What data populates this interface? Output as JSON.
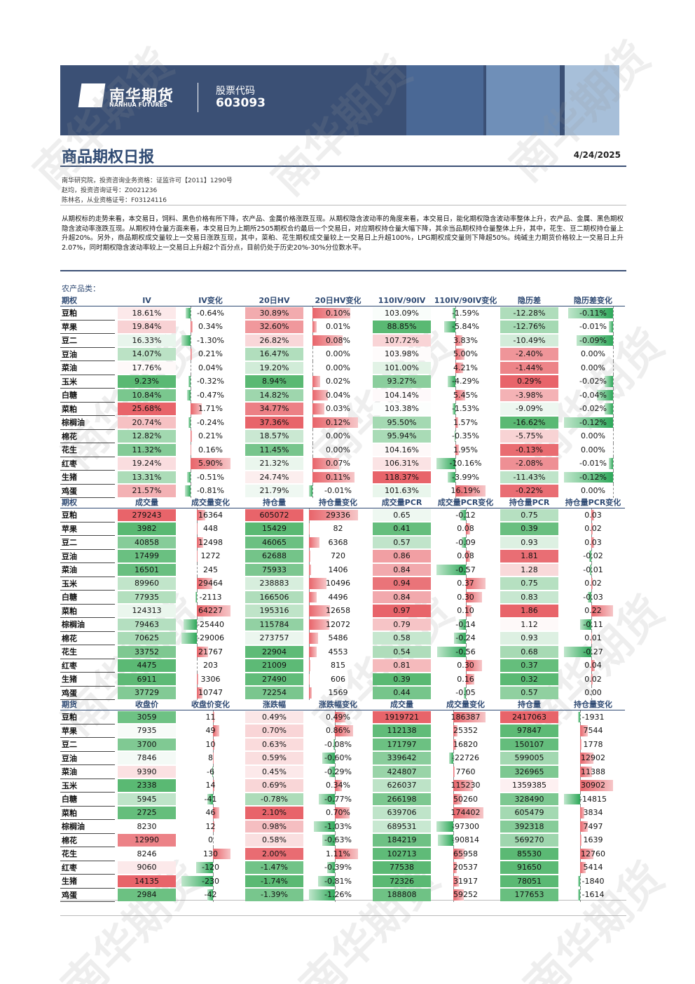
{
  "header": {
    "logo_cn": "南华期货",
    "logo_en": "NANHUA FUTURES",
    "code_label": "股票代码",
    "code": "603093"
  },
  "title": "商品期权日报",
  "date": "4/24/2025",
  "meta": [
    "南华研究院，投资咨询业务资格：证监许可【2011】1290号",
    "赵均，投资咨询证号：Z0021236",
    "陈林名，从业资格证号：F03124116"
  ],
  "summary": "从期权标的走势来看，本交易日，饲料、黑色价格有所下降，农产品、金属价格涨跌互现。从期权隐含波动率的角度来看，本交易日，能化期权隐含波动率整体上升，农产品、金属、黑色期权隐含波动率涨跌互现。从期权持仓量方面来看，本交易日为上期所2505期权合约最后一个交易日，对应期权持仓量大幅下降，其余当品期权持仓量整体上升，其中，花生、豆二期权持仓量上升超20%。另外，商品期权成交量较上一交易日涨跌互现，其中，菜粕、花生期权成交量较上一交易日上升超100%，LPG期权成交量则下降超50%。纯碱主力期货价格较上一交易日上升2.07%，同时期权隐含波动率较上一交易日上升超2个百分点，目前仍处于历史20%-30%分位数水平。",
  "section": "农产品类：",
  "watermark": "南华期货",
  "tables": [
    {
      "headers": [
        "期权",
        "IV",
        "IV变化",
        "20日HV",
        "20日HV变化",
        "110IV/90IV",
        "110IV/90IV变化",
        "隐历差",
        "隐历差变化"
      ],
      "rows": [
        [
          "豆粕",
          "18.61%",
          "-0.64%",
          "30.89%",
          "0.10%",
          "103.09%",
          "-1.59%",
          "-12.28%",
          "-0.11%"
        ],
        [
          "苹果",
          "19.84%",
          "0.34%",
          "32.60%",
          "0.01%",
          "88.85%",
          "-5.84%",
          "-12.76%",
          "-0.01%"
        ],
        [
          "豆二",
          "16.33%",
          "-1.30%",
          "26.82%",
          "0.08%",
          "107.72%",
          "3.83%",
          "-10.49%",
          "-0.09%"
        ],
        [
          "豆油",
          "14.07%",
          "0.21%",
          "16.47%",
          "0.00%",
          "103.98%",
          "5.00%",
          "-2.40%",
          "0.00%"
        ],
        [
          "菜油",
          "17.76%",
          "0.04%",
          "19.20%",
          "0.00%",
          "101.00%",
          "4.21%",
          "-1.44%",
          "0.00%"
        ],
        [
          "玉米",
          "9.23%",
          "-0.32%",
          "8.94%",
          "0.02%",
          "93.27%",
          "-4.29%",
          "0.29%",
          "-0.02%"
        ],
        [
          "白糖",
          "10.84%",
          "-0.47%",
          "14.82%",
          "0.04%",
          "104.14%",
          "5.45%",
          "-3.98%",
          "-0.04%"
        ],
        [
          "菜粕",
          "25.68%",
          "1.71%",
          "34.77%",
          "0.03%",
          "103.38%",
          "-1.53%",
          "-9.09%",
          "-0.02%"
        ],
        [
          "棕榈油",
          "20.74%",
          "-0.24%",
          "37.36%",
          "0.12%",
          "95.50%",
          "1.57%",
          "-16.62%",
          "-0.12%"
        ],
        [
          "棉花",
          "12.82%",
          "0.21%",
          "18.57%",
          "0.00%",
          "95.94%",
          "-0.35%",
          "-5.75%",
          "0.00%"
        ],
        [
          "花生",
          "11.32%",
          "0.16%",
          "11.45%",
          "0.00%",
          "104.16%",
          "1.95%",
          "-0.13%",
          "0.00%"
        ],
        [
          "红枣",
          "19.24%",
          "5.90%",
          "21.32%",
          "0.07%",
          "106.31%",
          "-10.16%",
          "-2.08%",
          "-0.01%"
        ],
        [
          "生猪",
          "13.31%",
          "-0.51%",
          "24.74%",
          "0.11%",
          "118.37%",
          "-3.99%",
          "-11.43%",
          "-0.12%"
        ],
        [
          "鸡蛋",
          "21.57%",
          "-0.81%",
          "21.79%",
          "-0.01%",
          "101.63%",
          "16.19%",
          "-0.22%",
          "0.00%"
        ]
      ]
    },
    {
      "headers": [
        "期权",
        "成交量",
        "成交量变化",
        "持仓量",
        "持仓量变化",
        "成交量PCR",
        "成交量PCR变化",
        "持仓量PCR",
        "持仓量PCR变化"
      ],
      "rows": [
        [
          "豆粕",
          "279243",
          "16364",
          "605072",
          "29336",
          "0.65",
          "-0.12",
          "0.75",
          "0.03"
        ],
        [
          "苹果",
          "3982",
          "448",
          "15429",
          "82",
          "0.41",
          "0.08",
          "0.39",
          "0.02"
        ],
        [
          "豆二",
          "40858",
          "12498",
          "46065",
          "6368",
          "0.57",
          "-0.09",
          "0.93",
          "0.03"
        ],
        [
          "豆油",
          "17499",
          "1272",
          "62688",
          "720",
          "0.86",
          "0.08",
          "1.81",
          "-0.02"
        ],
        [
          "菜油",
          "16501",
          "245",
          "75933",
          "1406",
          "0.84",
          "-0.57",
          "1.28",
          "-0.01"
        ],
        [
          "玉米",
          "89960",
          "29464",
          "238883",
          "10496",
          "0.94",
          "0.37",
          "0.75",
          "0.02"
        ],
        [
          "白糖",
          "77935",
          "-2113",
          "166506",
          "4496",
          "0.84",
          "0.30",
          "0.83",
          "-0.03"
        ],
        [
          "菜粕",
          "124313",
          "64227",
          "195316",
          "12658",
          "0.97",
          "0.10",
          "1.86",
          "0.22"
        ],
        [
          "棕榈油",
          "79463",
          "-25440",
          "115784",
          "12072",
          "0.79",
          "-0.14",
          "1.12",
          "-0.11"
        ],
        [
          "棉花",
          "70625",
          "-29006",
          "273757",
          "5486",
          "0.58",
          "-0.24",
          "0.93",
          "0.01"
        ],
        [
          "花生",
          "33752",
          "21767",
          "22904",
          "4553",
          "0.54",
          "-0.56",
          "0.68",
          "-0.27"
        ],
        [
          "红枣",
          "4475",
          "203",
          "21009",
          "815",
          "0.81",
          "0.30",
          "0.37",
          "0.04"
        ],
        [
          "生猪",
          "6911",
          "3306",
          "27490",
          "606",
          "0.39",
          "0.16",
          "0.32",
          "0.02"
        ],
        [
          "鸡蛋",
          "37729",
          "10747",
          "72254",
          "1569",
          "0.44",
          "-0.05",
          "0.57",
          "0.00"
        ]
      ]
    },
    {
      "headers": [
        "期货",
        "收盘价",
        "收盘价变化",
        "涨跌幅",
        "涨跌幅变化",
        "成交量",
        "成交量变化",
        "持仓量",
        "持仓量变化"
      ],
      "rows": [
        [
          "豆粕",
          "3059",
          "11",
          "0.49%",
          "0.49%",
          "1919721",
          "186387",
          "2417063",
          "-1931"
        ],
        [
          "苹果",
          "7935",
          "49",
          "0.70%",
          "0.86%",
          "112138",
          "25352",
          "97847",
          "7544"
        ],
        [
          "豆二",
          "3700",
          "10",
          "0.63%",
          "-0.08%",
          "171797",
          "16820",
          "150107",
          "1778"
        ],
        [
          "豆油",
          "7846",
          "8",
          "0.59%",
          "-0.60%",
          "339642",
          "-22726",
          "599005",
          "12902"
        ],
        [
          "菜油",
          "9390",
          "-6",
          "0.45%",
          "-0.29%",
          "424807",
          "7760",
          "326965",
          "11388"
        ],
        [
          "玉米",
          "2338",
          "14",
          "0.69%",
          "0.34%",
          "626037",
          "115230",
          "1359385",
          "30902"
        ],
        [
          "白糖",
          "5945",
          "-41",
          "-0.78%",
          "-0.77%",
          "266198",
          "50260",
          "328490",
          "-14815"
        ],
        [
          "菜粕",
          "2725",
          "46",
          "2.10%",
          "0.70%",
          "639706",
          "174402",
          "605479",
          "3834"
        ],
        [
          "棕榈油",
          "8230",
          "12",
          "0.98%",
          "-1.03%",
          "689531",
          "-97300",
          "392318",
          "7497"
        ],
        [
          "棉花",
          "12990",
          "0",
          "0.58%",
          "-0.63%",
          "184219",
          "-90814",
          "569270",
          "1639"
        ],
        [
          "花生",
          "8246",
          "130",
          "2.00%",
          "1.11%",
          "102713",
          "65958",
          "85530",
          "12760"
        ],
        [
          "红枣",
          "9060",
          "-120",
          "-1.47%",
          "-0.39%",
          "77538",
          "20537",
          "91650",
          "5414"
        ],
        [
          "生猪",
          "14135",
          "-230",
          "-1.74%",
          "-0.81%",
          "72326",
          "31917",
          "78051",
          "-1840"
        ],
        [
          "鸡蛋",
          "2984",
          "-42",
          "-1.39%",
          "-1.26%",
          "188808",
          "59252",
          "177653",
          "-1614"
        ]
      ]
    }
  ]
}
